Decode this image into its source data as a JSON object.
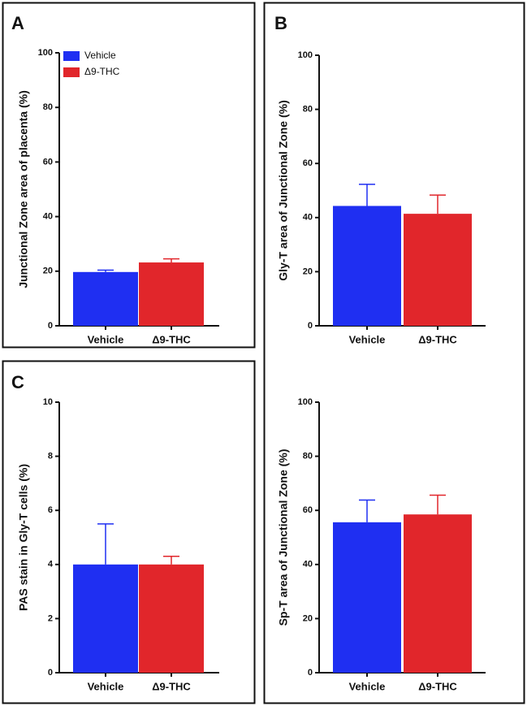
{
  "chart_data": [
    {
      "type": "bar",
      "panel": "A",
      "y_label": "Junctional Zone area of placenta (%)",
      "categories": [
        "Vehicle",
        "Δ9-THC"
      ],
      "values": [
        19.7,
        23.2
      ],
      "errors": [
        0.7,
        1.3
      ],
      "colors": [
        "#1f2ff2",
        "#e1262b"
      ],
      "ylim": [
        0,
        100
      ],
      "yticks": [
        0,
        20,
        40,
        60,
        80,
        100
      ],
      "legend": true,
      "legend_position": "top-left"
    },
    {
      "type": "bar",
      "panel": "B",
      "y_label": "Gly-T area of Junctional Zone (%)",
      "categories": [
        "Vehicle",
        "Δ9-THC"
      ],
      "values": [
        44.3,
        41.4
      ],
      "errors": [
        8.0,
        6.9
      ],
      "colors": [
        "#1f2ff2",
        "#e1262b"
      ],
      "ylim": [
        0,
        100
      ],
      "yticks": [
        0,
        20,
        40,
        60,
        80,
        100
      ]
    },
    {
      "type": "bar",
      "panel": "C",
      "y_label": "PAS stain in Gly-T cells (%)",
      "categories": [
        "Vehicle",
        "Δ9-THC"
      ],
      "values": [
        4.0,
        4.0
      ],
      "errors": [
        1.5,
        0.3
      ],
      "colors": [
        "#1f2ff2",
        "#e1262b"
      ],
      "ylim": [
        0,
        10
      ],
      "yticks": [
        0,
        2,
        4,
        6,
        8,
        10
      ]
    },
    {
      "type": "bar",
      "y_label": "Sp-T area of Junctional Zone (%)",
      "categories": [
        "Vehicle",
        "Δ9-THC"
      ],
      "values": [
        55.6,
        58.5
      ],
      "errors": [
        8.2,
        7.1
      ],
      "colors": [
        "#1f2ff2",
        "#e1262b"
      ],
      "ylim": [
        0,
        100
      ],
      "yticks": [
        0,
        20,
        40,
        60,
        80,
        100
      ]
    }
  ]
}
